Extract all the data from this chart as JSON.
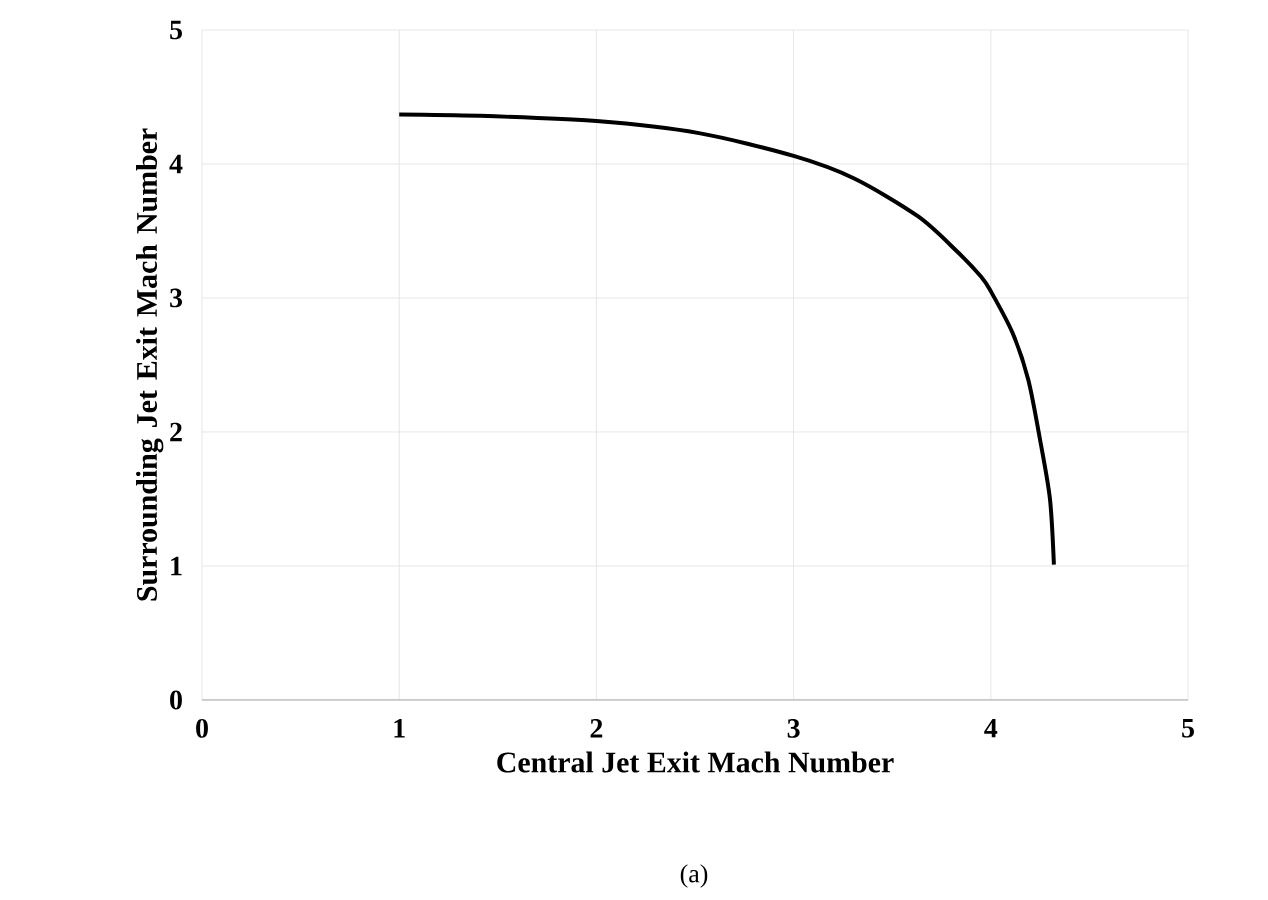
{
  "chart_data": {
    "type": "line",
    "xlabel": "Central Jet Exit Mach Number",
    "ylabel": "Surrounding Jet Exit Mach Number",
    "x": [
      1.0,
      1.4,
      2.0,
      2.52,
      3.0,
      3.31,
      3.63,
      3.82,
      3.95,
      4.0,
      4.11,
      4.19,
      4.25,
      4.3,
      4.32
    ],
    "series": [
      {
        "color": "#000000",
        "values": [
          4.37,
          4.36,
          4.32,
          4.23,
          4.06,
          3.89,
          3.61,
          3.36,
          3.16,
          3.05,
          2.74,
          2.39,
          1.94,
          1.5,
          1.01
        ]
      }
    ],
    "xlim": [
      0,
      5
    ],
    "ylim": [
      0,
      5
    ],
    "xticks": [
      0,
      1,
      2,
      3,
      4,
      5
    ],
    "yticks": [
      0,
      1,
      2,
      3,
      4,
      5
    ],
    "grid": true,
    "marker": "none",
    "line_style": "solid",
    "annotations": [
      "(a)"
    ]
  }
}
